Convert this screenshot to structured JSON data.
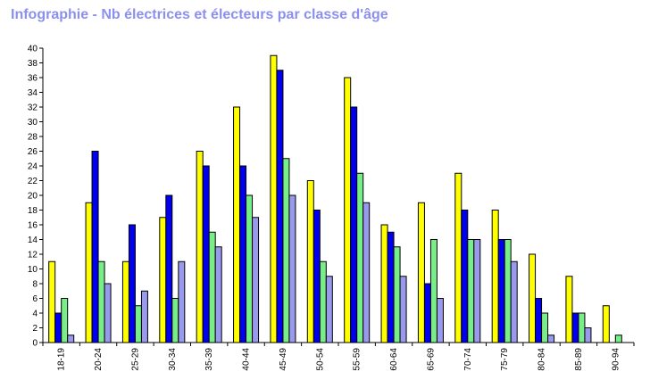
{
  "chart_data": {
    "type": "bar",
    "title": "Infographie - Nb électrices et électeurs par classe d'âge",
    "xlabel": "",
    "ylabel": "",
    "ylim": [
      0,
      40
    ],
    "ytick_step": 2,
    "grid": false,
    "legend": "none",
    "categories": [
      "18-19",
      "20-24",
      "25-29",
      "30-34",
      "35-39",
      "40-44",
      "45-49",
      "50-54",
      "55-59",
      "60-64",
      "65-69",
      "70-74",
      "75-79",
      "80-84",
      "85-89",
      "90-94"
    ],
    "series": [
      {
        "color": "#ffff00",
        "values": [
          11,
          19,
          11,
          17,
          26,
          32,
          39,
          22,
          36,
          16,
          19,
          23,
          18,
          12,
          9,
          5
        ]
      },
      {
        "color": "#0000ee",
        "values": [
          4,
          26,
          16,
          20,
          24,
          24,
          37,
          18,
          32,
          15,
          8,
          18,
          14,
          6,
          4,
          0
        ]
      },
      {
        "color": "#77ee88",
        "values": [
          6,
          11,
          5,
          6,
          15,
          20,
          25,
          11,
          23,
          13,
          14,
          14,
          14,
          4,
          4,
          1
        ]
      },
      {
        "color": "#9999ee",
        "values": [
          1,
          8,
          7,
          11,
          13,
          17,
          20,
          9,
          19,
          9,
          6,
          14,
          11,
          1,
          2,
          0
        ]
      }
    ]
  }
}
